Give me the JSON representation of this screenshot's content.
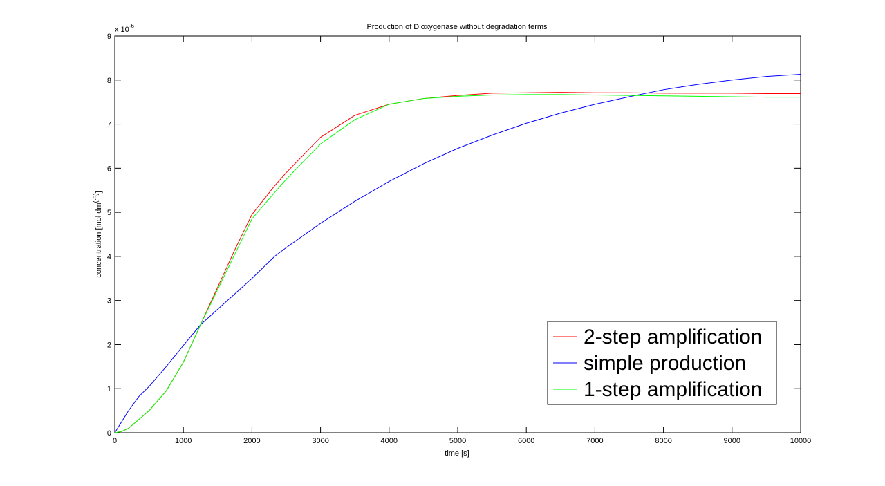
{
  "chart_data": {
    "type": "line",
    "title": "Production of Dioxygenase without degradation terms",
    "xlabel": "time [s]",
    "ylabel": [
      "concentration [mol dm",
      "(-3)",
      "]"
    ],
    "y_multiplier": [
      "x 10",
      "-6"
    ],
    "x": [
      0,
      100,
      200,
      350,
      500,
      750,
      1000,
      1250,
      1500,
      1750,
      2000,
      2330,
      2500,
      3000,
      3500,
      4000,
      4500,
      5000,
      5500,
      6000,
      6500,
      7000,
      7500,
      8000,
      8500,
      9000,
      9500,
      10000
    ],
    "series": [
      {
        "name": "2-step amplification",
        "color": "#ff0000",
        "values": [
          0,
          0.03,
          0.1,
          0.3,
          0.5,
          0.95,
          1.6,
          2.45,
          3.3,
          4.15,
          4.95,
          5.6,
          5.9,
          6.7,
          7.2,
          7.45,
          7.58,
          7.65,
          7.7,
          7.71,
          7.72,
          7.71,
          7.71,
          7.7,
          7.7,
          7.7,
          7.69,
          7.69
        ]
      },
      {
        "name": "simple production",
        "color": "#0000ff",
        "values": [
          0,
          0.25,
          0.5,
          0.82,
          1.05,
          1.5,
          1.98,
          2.45,
          2.8,
          3.15,
          3.5,
          4.0,
          4.2,
          4.75,
          5.25,
          5.7,
          6.1,
          6.45,
          6.75,
          7.02,
          7.25,
          7.45,
          7.62,
          7.78,
          7.9,
          8.0,
          8.08,
          8.13
        ]
      },
      {
        "name": "1-step amplification",
        "color": "#00ff00",
        "values": [
          0,
          0.03,
          0.1,
          0.3,
          0.5,
          0.95,
          1.6,
          2.45,
          3.25,
          4.05,
          4.85,
          5.45,
          5.75,
          6.55,
          7.1,
          7.45,
          7.58,
          7.63,
          7.66,
          7.67,
          7.67,
          7.66,
          7.65,
          7.64,
          7.63,
          7.62,
          7.61,
          7.61
        ]
      }
    ],
    "xlim": [
      0,
      10000
    ],
    "xticks": [
      0,
      1000,
      2000,
      3000,
      4000,
      5000,
      6000,
      7000,
      8000,
      9000,
      10000
    ],
    "ylim": [
      0,
      9
    ],
    "yticks": [
      0,
      1,
      2,
      3,
      4,
      5,
      6,
      7,
      8,
      9
    ],
    "grid": false,
    "legend": "lower right"
  }
}
